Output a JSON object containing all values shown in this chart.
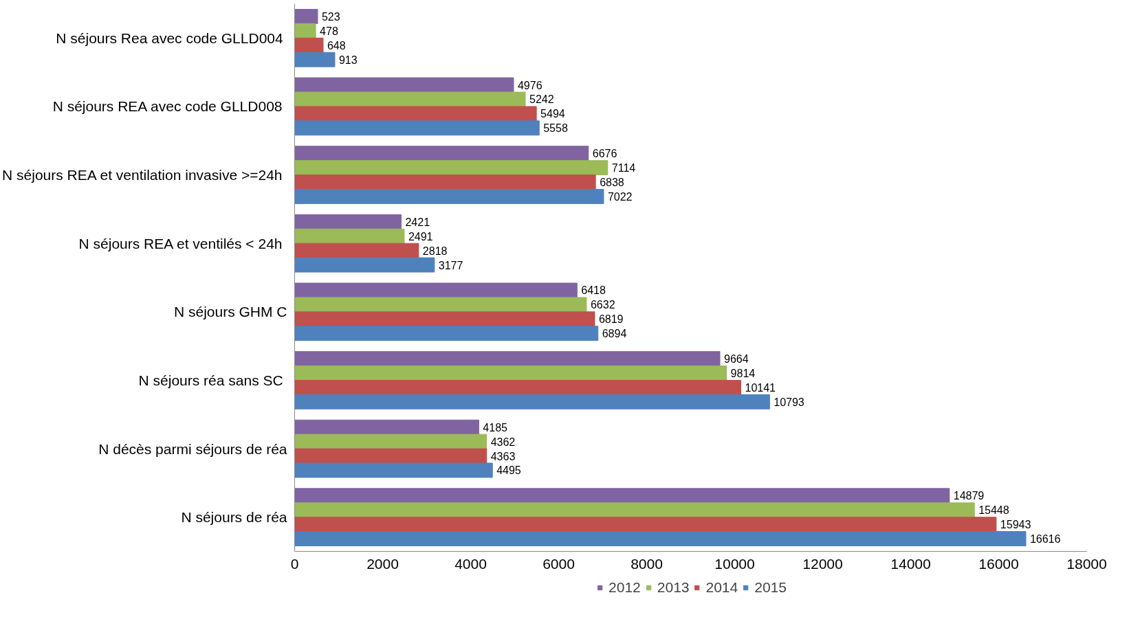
{
  "chart_data": {
    "type": "bar",
    "orientation": "horizontal",
    "categories": [
      "N séjours Rea  avec code GLLD004",
      "N séjours REA avec code  GLLD008",
      "N séjours REA et ventilation invasive  >=24h",
      "N séjours  REA et ventilés < 24h",
      "N séjours GHM C",
      "N séjours  réa sans SC",
      "N décès parmi séjours de réa",
      "N séjours de réa"
    ],
    "series": [
      {
        "name": "2012",
        "color": "#8064a2",
        "values": [
          523,
          4976,
          6676,
          2421,
          6418,
          9664,
          4185,
          14879
        ]
      },
      {
        "name": "2013",
        "color": "#9bbb59",
        "values": [
          478,
          5242,
          7114,
          2491,
          6632,
          9814,
          4362,
          15448
        ]
      },
      {
        "name": "2014",
        "color": "#c0504d",
        "values": [
          648,
          5494,
          6838,
          2818,
          6819,
          10141,
          4363,
          15943
        ]
      },
      {
        "name": "2015",
        "color": "#4f81bd",
        "values": [
          913,
          5558,
          7022,
          3177,
          6894,
          10793,
          4495,
          16616
        ]
      }
    ],
    "xlim": [
      0,
      18000
    ],
    "xticks": [
      0,
      2000,
      4000,
      6000,
      8000,
      10000,
      12000,
      14000,
      16000,
      18000
    ],
    "grid": false,
    "legend": "bottom",
    "data_labels": true
  }
}
